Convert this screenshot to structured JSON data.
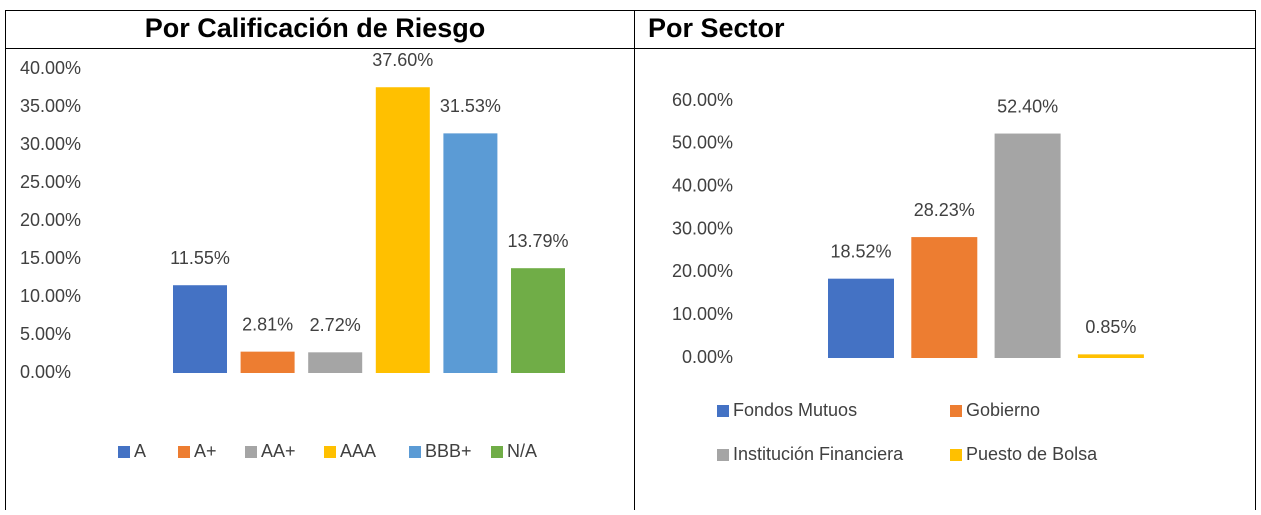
{
  "chart_data": [
    {
      "type": "bar",
      "title": "Por Calificación de Riesgo",
      "ylim": [
        0,
        40
      ],
      "yticks": [
        {
          "value": 0,
          "label": "0.00%"
        },
        {
          "value": 5,
          "label": "5.00%"
        },
        {
          "value": 10,
          "label": "10.00%"
        },
        {
          "value": 15,
          "label": "15.00%"
        },
        {
          "value": 20,
          "label": "20.00%"
        },
        {
          "value": 25,
          "label": "25.00%"
        },
        {
          "value": 30,
          "label": "30.00%"
        },
        {
          "value": 35,
          "label": "35.00%"
        },
        {
          "value": 40,
          "label": "40.00%"
        }
      ],
      "series": [
        {
          "name": "A",
          "color": "#4472c4",
          "values": [
            11.55
          ],
          "value_labels": [
            "11.55%"
          ]
        },
        {
          "name": "A+",
          "color": "#ed7d31",
          "values": [
            2.81
          ],
          "value_labels": [
            "2.81%"
          ]
        },
        {
          "name": "AA+",
          "color": "#a5a5a5",
          "values": [
            2.72
          ],
          "value_labels": [
            "2.72%"
          ]
        },
        {
          "name": "AAA",
          "color": "#ffc000",
          "values": [
            37.6
          ],
          "value_labels": [
            "37.60%"
          ]
        },
        {
          "name": "BBB+",
          "color": "#5b9bd5",
          "values": [
            31.53
          ],
          "value_labels": [
            "31.53%"
          ]
        },
        {
          "name": "N/A",
          "color": "#70ad47",
          "values": [
            13.79
          ],
          "value_labels": [
            "13.79%"
          ]
        }
      ]
    },
    {
      "type": "bar",
      "title": "Por Sector",
      "ylim": [
        0,
        60
      ],
      "yticks": [
        {
          "value": 0,
          "label": "0.00%"
        },
        {
          "value": 10,
          "label": "10.00%"
        },
        {
          "value": 20,
          "label": "20.00%"
        },
        {
          "value": 30,
          "label": "30.00%"
        },
        {
          "value": 40,
          "label": "40.00%"
        },
        {
          "value": 50,
          "label": "50.00%"
        },
        {
          "value": 60,
          "label": "60.00%"
        }
      ],
      "series": [
        {
          "name": "Fondos Mutuos",
          "color": "#4472c4",
          "values": [
            18.52
          ],
          "value_labels": [
            "18.52%"
          ]
        },
        {
          "name": "Gobierno",
          "color": "#ed7d31",
          "values": [
            28.23
          ],
          "value_labels": [
            "28.23%"
          ]
        },
        {
          "name": "Institución Financiera",
          "color": "#a5a5a5",
          "values": [
            52.4
          ],
          "value_labels": [
            "52.40%"
          ]
        },
        {
          "name": "Puesto de Bolsa",
          "color": "#ffc000",
          "values": [
            0.85
          ],
          "value_labels": [
            "0.85%"
          ]
        }
      ]
    }
  ]
}
